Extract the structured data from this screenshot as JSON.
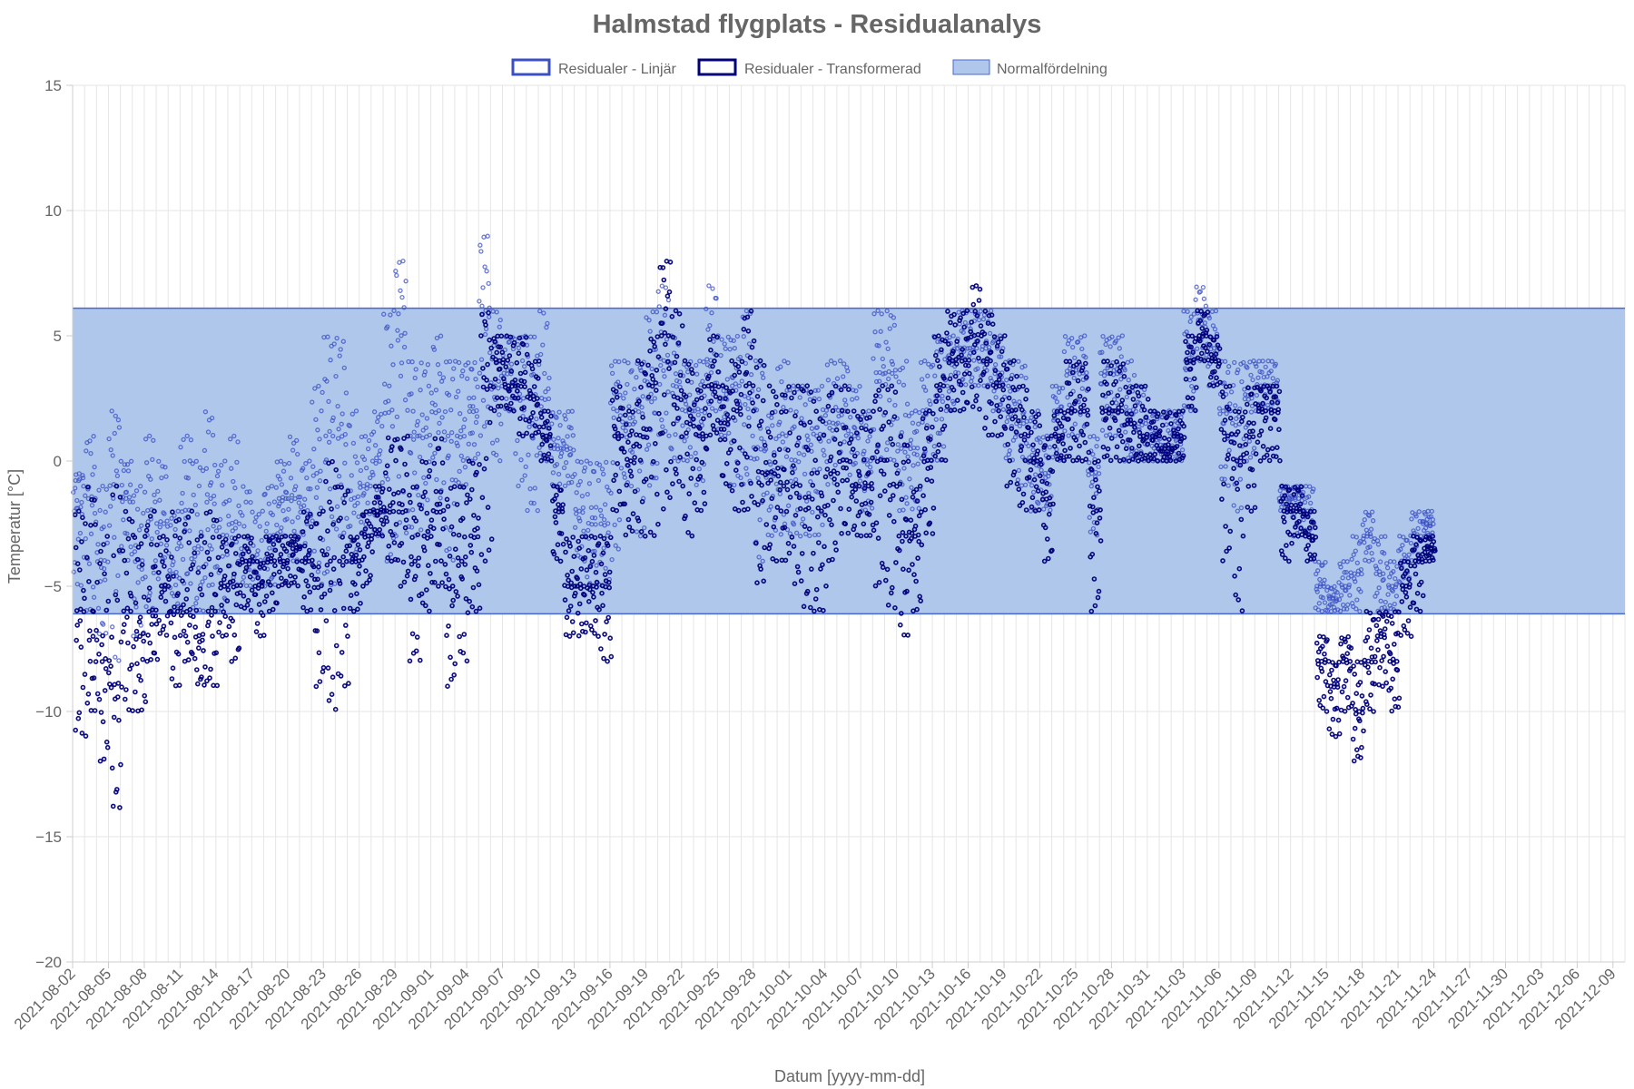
{
  "chart_data": {
    "type": "scatter",
    "title": "Halmstad flygplats - Residualanalys",
    "xlabel": "Datum [yyyy-mm-dd]",
    "ylabel": "Temperatur [°C]",
    "ylim": [
      -20,
      15
    ],
    "yticks": [
      -20,
      -15,
      -10,
      -5,
      0,
      5,
      10,
      15
    ],
    "yticklabels": [
      "−20",
      "−15",
      "−10",
      "−5",
      "0",
      "5",
      "10",
      "15"
    ],
    "x_start": "2021-08-02",
    "x_end": "2021-12-10",
    "x_tick_step_days": 3,
    "xticks": [
      "2021-08-02",
      "2021-08-05",
      "2021-08-08",
      "2021-08-11",
      "2021-08-14",
      "2021-08-17",
      "2021-08-20",
      "2021-08-23",
      "2021-08-26",
      "2021-08-29",
      "2021-09-01",
      "2021-09-04",
      "2021-09-07",
      "2021-09-10",
      "2021-09-13",
      "2021-09-16",
      "2021-09-19",
      "2021-09-22",
      "2021-09-25",
      "2021-09-28",
      "2021-10-01",
      "2021-10-04",
      "2021-10-07",
      "2021-10-10",
      "2021-10-13",
      "2021-10-16",
      "2021-10-19",
      "2021-10-22",
      "2021-10-25",
      "2021-10-28",
      "2021-10-31",
      "2021-11-03",
      "2021-11-06",
      "2021-11-09",
      "2021-11-12",
      "2021-11-15",
      "2021-11-18",
      "2021-11-21",
      "2021-11-24",
      "2021-11-27",
      "2021-11-30",
      "2021-12-03",
      "2021-12-06",
      "2021-12-09"
    ],
    "grid": true,
    "legend_position": "top",
    "band": {
      "name": "Normalfördelning",
      "min": -6.1,
      "max": 6.1,
      "fill": "#aec7eb",
      "stroke": "#4a67d6"
    },
    "series": [
      {
        "name": "Residualer - Linjär",
        "color": "#3b4fc4",
        "daily": [
          [
            -2,
            -0.5,
            -5
          ],
          [
            1,
            -1.5,
            -6
          ],
          [
            -1,
            -4,
            -7
          ],
          [
            2,
            -1,
            -8
          ],
          [
            0,
            -1.5,
            -4
          ],
          [
            -1,
            -4,
            -7
          ],
          [
            1,
            -2,
            -6
          ],
          [
            0,
            -2.5,
            -5
          ],
          [
            -2,
            -4.5,
            -6
          ],
          [
            1,
            -2,
            -5
          ],
          [
            0,
            -3.5,
            -6
          ],
          [
            2,
            -1.5,
            -5
          ],
          [
            0,
            -3,
            -6
          ],
          [
            1,
            -2.5,
            -5
          ],
          [
            -1,
            -3.5,
            -5
          ],
          [
            -2,
            -4,
            -5
          ],
          [
            -1,
            -3,
            -5
          ],
          [
            0,
            -1.5,
            -3
          ],
          [
            1,
            -1.5,
            -4
          ],
          [
            0,
            -2,
            -4
          ],
          [
            3,
            -0.5,
            -5
          ],
          [
            5,
            1,
            -5
          ],
          [
            5,
            1,
            -3
          ],
          [
            2,
            -1.5,
            -4
          ],
          [
            1,
            -1,
            -3
          ],
          [
            2,
            0,
            -3
          ],
          [
            6,
            2,
            -4
          ],
          [
            8,
            5,
            -3
          ],
          [
            4,
            1,
            -3
          ],
          [
            4,
            1,
            -3
          ],
          [
            5,
            2,
            -2
          ],
          [
            4,
            1,
            -4
          ],
          [
            4,
            1,
            -1
          ],
          [
            4,
            2,
            0
          ],
          [
            9,
            6,
            1
          ],
          [
            6,
            3,
            0
          ],
          [
            5,
            3.5,
            2
          ],
          [
            5,
            2.5,
            -1
          ],
          [
            5,
            1.5,
            -2
          ],
          [
            6,
            2.5,
            0
          ],
          [
            2,
            0.5,
            -1
          ],
          [
            2,
            0.5,
            -1
          ],
          [
            0,
            -2,
            -4
          ],
          [
            0,
            -2.5,
            -5
          ],
          [
            0,
            -2.5,
            -5
          ],
          [
            4,
            2,
            -4
          ],
          [
            4,
            1.5,
            -1
          ],
          [
            4,
            2,
            -3
          ],
          [
            6,
            2.5,
            -1
          ],
          [
            7,
            4,
            1
          ],
          [
            5,
            3,
            0
          ],
          [
            4,
            2,
            0
          ],
          [
            4,
            2,
            -1
          ],
          [
            7,
            4,
            2
          ],
          [
            5,
            2.5,
            1
          ],
          [
            5,
            3,
            -1
          ],
          [
            6,
            2.5,
            -1
          ],
          [
            4,
            0.5,
            -4
          ],
          [
            2,
            -0.5,
            -3
          ],
          [
            4,
            1,
            -3
          ],
          [
            3,
            0,
            -3
          ],
          [
            3,
            0.5,
            -3
          ],
          [
            3,
            1,
            -3
          ],
          [
            4,
            1.5,
            -1
          ],
          [
            4,
            2,
            0
          ],
          [
            3,
            1,
            -1
          ],
          [
            2,
            0,
            -2
          ],
          [
            6,
            3.5,
            0
          ],
          [
            6,
            3.5,
            0
          ],
          [
            4,
            0.5,
            -2
          ],
          [
            2,
            0.5,
            -2
          ],
          [
            4,
            2,
            0
          ],
          [
            5,
            2.5,
            0
          ],
          [
            5,
            4,
            2
          ],
          [
            6,
            4.5,
            3
          ],
          [
            6,
            4.5,
            3
          ],
          [
            6,
            4.5,
            3
          ],
          [
            5,
            3.5,
            2
          ],
          [
            4,
            2,
            0
          ],
          [
            4,
            1.5,
            -1
          ],
          [
            2,
            0,
            -2
          ],
          [
            1,
            -0.5,
            -2
          ],
          [
            3,
            2,
            0
          ],
          [
            5,
            3.5,
            1
          ],
          [
            5,
            3.5,
            1
          ],
          [
            1,
            -0.5,
            -3
          ],
          [
            5,
            3.5,
            1
          ],
          [
            5,
            3.5,
            1
          ],
          [
            4,
            2,
            0
          ],
          [
            3,
            1.5,
            0
          ],
          [
            2,
            1,
            0
          ],
          [
            2,
            0.5,
            0
          ],
          [
            2,
            1,
            0
          ],
          [
            6,
            4,
            2
          ],
          [
            7,
            5.5,
            4
          ],
          [
            6,
            4.5,
            3
          ],
          [
            4,
            2,
            -1
          ],
          [
            4,
            1.5,
            -2
          ],
          [
            4,
            2.5,
            0
          ],
          [
            4,
            3,
            2
          ],
          [
            4,
            3,
            2
          ],
          [
            -1,
            -1.5,
            -2
          ],
          [
            -1,
            -1.5,
            -3
          ],
          [
            -1,
            -2,
            -3
          ],
          [
            -4,
            -5,
            -6
          ],
          [
            -5,
            -5.5,
            -6
          ],
          [
            -4,
            -5,
            -6
          ],
          [
            -3,
            -4.5,
            -6
          ],
          [
            -2,
            -3,
            -4
          ],
          [
            -3,
            -4.5,
            -6
          ],
          [
            -4,
            -5,
            -6
          ],
          [
            -3,
            -4,
            -5
          ],
          [
            -2,
            -3,
            -4
          ],
          [
            -2,
            -2.5,
            -3
          ]
        ]
      },
      {
        "name": "Residualer - Transformerad",
        "color": "#00007a",
        "daily": [
          [
            -2,
            -6,
            -11
          ],
          [
            -1,
            -7,
            -10
          ],
          [
            -3,
            -8,
            -12
          ],
          [
            -1,
            -9,
            -14
          ],
          [
            -2,
            -6,
            -10
          ],
          [
            -3,
            -7,
            -10
          ],
          [
            -2,
            -6,
            -8
          ],
          [
            -3,
            -5,
            -7
          ],
          [
            -2,
            -6,
            -9
          ],
          [
            -2,
            -6,
            -8
          ],
          [
            -3,
            -7,
            -9
          ],
          [
            -2,
            -6,
            -9
          ],
          [
            -3,
            -5,
            -7
          ],
          [
            -3,
            -5,
            -8
          ],
          [
            -3,
            -4,
            -6
          ],
          [
            -4,
            -5,
            -7
          ],
          [
            -3,
            -4,
            -6
          ],
          [
            -3,
            -4,
            -5
          ],
          [
            -3,
            -3.5,
            -5
          ],
          [
            -2,
            -4,
            -6
          ],
          [
            -2,
            -5,
            -9
          ],
          [
            0,
            -4,
            -10
          ],
          [
            -1,
            -4,
            -9
          ],
          [
            -3,
            -4,
            -6
          ],
          [
            -2,
            -3,
            -5
          ],
          [
            -1,
            -2,
            -3
          ],
          [
            1,
            -2,
            -4
          ],
          [
            1,
            -2,
            -5
          ],
          [
            -1,
            -4,
            -8
          ],
          [
            0,
            -3,
            -6
          ],
          [
            1,
            -2,
            -5
          ],
          [
            -1,
            -5,
            -9
          ],
          [
            -1,
            -4,
            -8
          ],
          [
            0,
            -3,
            -6
          ],
          [
            6,
            3,
            -4
          ],
          [
            5,
            4,
            2
          ],
          [
            5,
            3,
            2
          ],
          [
            5,
            3,
            1
          ],
          [
            4,
            2.5,
            1
          ],
          [
            2,
            1,
            0
          ],
          [
            -1,
            -2,
            -4
          ],
          [
            -3,
            -5,
            -7
          ],
          [
            -3,
            -5,
            -7
          ],
          [
            -3,
            -5,
            -7
          ],
          [
            -3,
            -5,
            -8
          ],
          [
            3,
            1,
            -2
          ],
          [
            2,
            0,
            -3
          ],
          [
            4,
            1,
            -3
          ],
          [
            5,
            3,
            -3
          ],
          [
            8,
            5,
            -2
          ],
          [
            6,
            2.5,
            -1
          ],
          [
            4,
            1.5,
            -3
          ],
          [
            3,
            1,
            -2
          ],
          [
            5,
            3,
            1
          ],
          [
            3,
            1.5,
            -1
          ],
          [
            4,
            2,
            -2
          ],
          [
            6,
            3,
            -2
          ],
          [
            4,
            -0.5,
            -5
          ],
          [
            3,
            -0.5,
            -4
          ],
          [
            3,
            -1,
            -4
          ],
          [
            3,
            -1,
            -5
          ],
          [
            3,
            -1.5,
            -6
          ],
          [
            2,
            -2,
            -6
          ],
          [
            3,
            -0.5,
            -4
          ],
          [
            3,
            0,
            -3
          ],
          [
            2,
            -1,
            -3
          ],
          [
            2,
            -1,
            -3
          ],
          [
            3,
            0,
            -5
          ],
          [
            3,
            -1,
            -6
          ],
          [
            1,
            -3,
            -7
          ],
          [
            -1,
            -3,
            -6
          ],
          [
            2,
            0,
            -3
          ],
          [
            5,
            3,
            0
          ],
          [
            6,
            4,
            2
          ],
          [
            6,
            4,
            2
          ],
          [
            7,
            5,
            2
          ],
          [
            6,
            4,
            1
          ],
          [
            5,
            3,
            1
          ],
          [
            4,
            2,
            -1
          ],
          [
            3,
            1,
            -2
          ],
          [
            2,
            0,
            -2
          ],
          [
            1,
            -1.5,
            -4
          ],
          [
            2,
            1,
            0
          ],
          [
            4,
            2,
            0
          ],
          [
            4,
            2,
            0
          ],
          [
            0,
            -2,
            -6
          ],
          [
            4,
            2,
            0
          ],
          [
            4,
            2,
            0
          ],
          [
            3,
            1.5,
            0
          ],
          [
            3,
            1,
            0
          ],
          [
            2,
            1,
            0
          ],
          [
            2,
            0.5,
            0
          ],
          [
            2,
            1,
            0
          ],
          [
            5,
            4,
            2
          ],
          [
            6,
            5,
            4
          ],
          [
            5,
            4,
            3
          ],
          [
            3,
            1,
            -4
          ],
          [
            2,
            0,
            -6
          ],
          [
            3,
            1,
            -2
          ],
          [
            3,
            2,
            0
          ],
          [
            3,
            2,
            0
          ],
          [
            -1,
            -2,
            -4
          ],
          [
            -1,
            -2,
            -3
          ],
          [
            -2,
            -3,
            -4
          ],
          [
            -7,
            -8,
            -10
          ],
          [
            -8,
            -9,
            -11
          ],
          [
            -7,
            -8,
            -10
          ],
          [
            -8,
            -10,
            -12
          ],
          [
            -6,
            -8,
            -10
          ],
          [
            -6,
            -7,
            -9
          ],
          [
            -6,
            -8,
            -10
          ],
          [
            -4,
            -5,
            -7
          ],
          [
            -3,
            -4,
            -6
          ],
          [
            -3,
            -3.5,
            -4
          ]
        ]
      }
    ]
  }
}
